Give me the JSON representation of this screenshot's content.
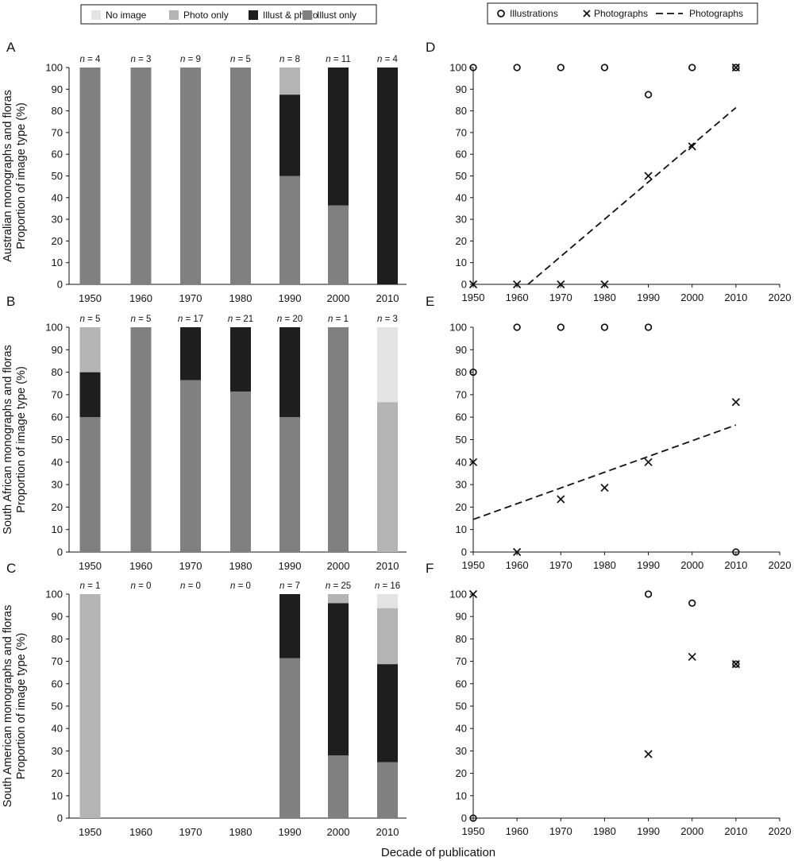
{
  "legend_left": {
    "items": [
      {
        "label": "No image",
        "color": "#e3e3e3"
      },
      {
        "label": "Photo only",
        "color": "#b4b4b4"
      },
      {
        "label": "Illust & photo",
        "color": "#1e1e1e"
      },
      {
        "label": "Illust only",
        "color": "#808080"
      }
    ]
  },
  "legend_right": {
    "items": [
      {
        "label": "Illustrations",
        "marker": "circle"
      },
      {
        "label": "Photographs",
        "marker": "cross"
      },
      {
        "label": "Photographs",
        "marker": "dashed-line"
      }
    ]
  },
  "x_axis_title": "Decade of publication",
  "colors": {
    "no_image": "#e3e3e3",
    "photo_only": "#b4b4b4",
    "illust_photo": "#1e1e1e",
    "illust_only": "#808080"
  },
  "chart_data": [
    {
      "panel": "A",
      "type": "bar",
      "stacked": true,
      "ylabel_line1": "Australian monographs and floras",
      "ylabel_line2": "Proportion of image type (%)",
      "ylim": [
        0,
        100
      ],
      "yticks": [
        "0",
        "10",
        "20",
        "30",
        "40",
        "50",
        "60",
        "70",
        "80",
        "90",
        "100"
      ],
      "categories": [
        "1950",
        "1960",
        "1970",
        "1980",
        "1990",
        "2000",
        "2010"
      ],
      "n_labels": [
        "4",
        "3",
        "9",
        "5",
        "8",
        "11",
        "4"
      ],
      "series": [
        {
          "name": "Illust only",
          "values": [
            100,
            100,
            100,
            100,
            50,
            36.4,
            0
          ]
        },
        {
          "name": "Illust & photo",
          "values": [
            0,
            0,
            0,
            0,
            37.5,
            63.6,
            100
          ]
        },
        {
          "name": "Photo only",
          "values": [
            0,
            0,
            0,
            0,
            12.5,
            0,
            0
          ]
        },
        {
          "name": "No image",
          "values": [
            0,
            0,
            0,
            0,
            0,
            0,
            0
          ]
        }
      ]
    },
    {
      "panel": "B",
      "type": "bar",
      "stacked": true,
      "ylabel_line1": "South African monographs and floras",
      "ylabel_line2": "Proportion of image type (%)",
      "ylim": [
        0,
        100
      ],
      "yticks": [
        "0",
        "10",
        "20",
        "30",
        "40",
        "50",
        "60",
        "70",
        "80",
        "90",
        "100"
      ],
      "categories": [
        "1950",
        "1960",
        "1970",
        "1980",
        "1990",
        "2000",
        "2010"
      ],
      "n_labels": [
        "5",
        "5",
        "17",
        "21",
        "20",
        "1",
        "3"
      ],
      "series": [
        {
          "name": "Illust only",
          "values": [
            60,
            100,
            76.5,
            71.4,
            60,
            100,
            0
          ]
        },
        {
          "name": "Illust & photo",
          "values": [
            20,
            0,
            23.5,
            28.6,
            40,
            0,
            0
          ]
        },
        {
          "name": "Photo only",
          "values": [
            20,
            0,
            0,
            0,
            0,
            0,
            66.7
          ]
        },
        {
          "name": "No image",
          "values": [
            0,
            0,
            0,
            0,
            0,
            0,
            33.3
          ]
        }
      ]
    },
    {
      "panel": "C",
      "type": "bar",
      "stacked": true,
      "ylabel_line1": "South American monographs and floras",
      "ylabel_line2": "Proportion of image type (%)",
      "ylim": [
        0,
        100
      ],
      "yticks": [
        "0",
        "10",
        "20",
        "30",
        "40",
        "50",
        "60",
        "70",
        "80",
        "90",
        "100"
      ],
      "categories": [
        "1950",
        "1960",
        "1970",
        "1980",
        "1990",
        "2000",
        "2010"
      ],
      "n_labels": [
        "1",
        "0",
        "0",
        "0",
        "7",
        "25",
        "16"
      ],
      "series": [
        {
          "name": "Illust only",
          "values": [
            0,
            0,
            0,
            0,
            71.4,
            28,
            25
          ]
        },
        {
          "name": "Illust & photo",
          "values": [
            0,
            0,
            0,
            0,
            28.6,
            68,
            43.75
          ]
        },
        {
          "name": "Photo only",
          "values": [
            100,
            0,
            0,
            0,
            0,
            4,
            25
          ]
        },
        {
          "name": "No image",
          "values": [
            0,
            0,
            0,
            0,
            0,
            0,
            6.25
          ]
        }
      ]
    },
    {
      "panel": "D",
      "type": "scatter",
      "xlim": [
        1950,
        2020
      ],
      "ylim": [
        0,
        100
      ],
      "xticks": [
        "1950",
        "1960",
        "1970",
        "1980",
        "1990",
        "2000",
        "2010",
        "2020"
      ],
      "yticks": [
        "0",
        "10",
        "20",
        "30",
        "40",
        "50",
        "60",
        "70",
        "80",
        "90",
        "100"
      ],
      "series": [
        {
          "name": "Illustrations",
          "marker": "circle",
          "points": [
            [
              1950,
              100
            ],
            [
              1960,
              100
            ],
            [
              1970,
              100
            ],
            [
              1980,
              100
            ],
            [
              1990,
              87.5
            ],
            [
              2000,
              100
            ],
            [
              2010,
              100
            ]
          ]
        },
        {
          "name": "Photographs",
          "marker": "cross",
          "points": [
            [
              1950,
              0
            ],
            [
              1960,
              0
            ],
            [
              1970,
              0
            ],
            [
              1980,
              0
            ],
            [
              1990,
              50
            ],
            [
              2000,
              63.6
            ],
            [
              2010,
              100
            ]
          ]
        }
      ],
      "trendline": {
        "name": "Photographs",
        "x": [
          1962.5,
          2010
        ],
        "y": [
          0,
          81.5
        ]
      }
    },
    {
      "panel": "E",
      "type": "scatter",
      "xlim": [
        1950,
        2020
      ],
      "ylim": [
        0,
        100
      ],
      "xticks": [
        "1950",
        "1960",
        "1970",
        "1980",
        "1990",
        "2000",
        "2010",
        "2020"
      ],
      "yticks": [
        "0",
        "10",
        "20",
        "30",
        "40",
        "50",
        "60",
        "70",
        "80",
        "90",
        "100"
      ],
      "series": [
        {
          "name": "Illustrations",
          "marker": "circle",
          "points": [
            [
              1950,
              80
            ],
            [
              1960,
              100
            ],
            [
              1970,
              100
            ],
            [
              1980,
              100
            ],
            [
              1990,
              100
            ],
            [
              2010,
              0
            ]
          ]
        },
        {
          "name": "Photographs",
          "marker": "cross",
          "points": [
            [
              1950,
              40
            ],
            [
              1960,
              0
            ],
            [
              1970,
              23.5
            ],
            [
              1980,
              28.6
            ],
            [
              1990,
              40
            ],
            [
              2010,
              66.7
            ]
          ]
        }
      ],
      "trendline": {
        "name": "Photographs",
        "x": [
          1950,
          2010
        ],
        "y": [
          14.5,
          56.5
        ]
      }
    },
    {
      "panel": "F",
      "type": "scatter",
      "xlim": [
        1950,
        2020
      ],
      "ylim": [
        0,
        100
      ],
      "xticks": [
        "1950",
        "1960",
        "1970",
        "1980",
        "1990",
        "2000",
        "2010",
        "2020"
      ],
      "yticks": [
        "0",
        "10",
        "20",
        "30",
        "40",
        "50",
        "60",
        "70",
        "80",
        "90",
        "100"
      ],
      "series": [
        {
          "name": "Illustrations",
          "marker": "circle",
          "points": [
            [
              1950,
              0
            ],
            [
              1990,
              100
            ],
            [
              2000,
              96
            ],
            [
              2010,
              68.75
            ]
          ]
        },
        {
          "name": "Photographs",
          "marker": "cross",
          "points": [
            [
              1950,
              100
            ],
            [
              1990,
              28.6
            ],
            [
              2000,
              72
            ],
            [
              2010,
              68.75
            ]
          ]
        }
      ]
    }
  ]
}
